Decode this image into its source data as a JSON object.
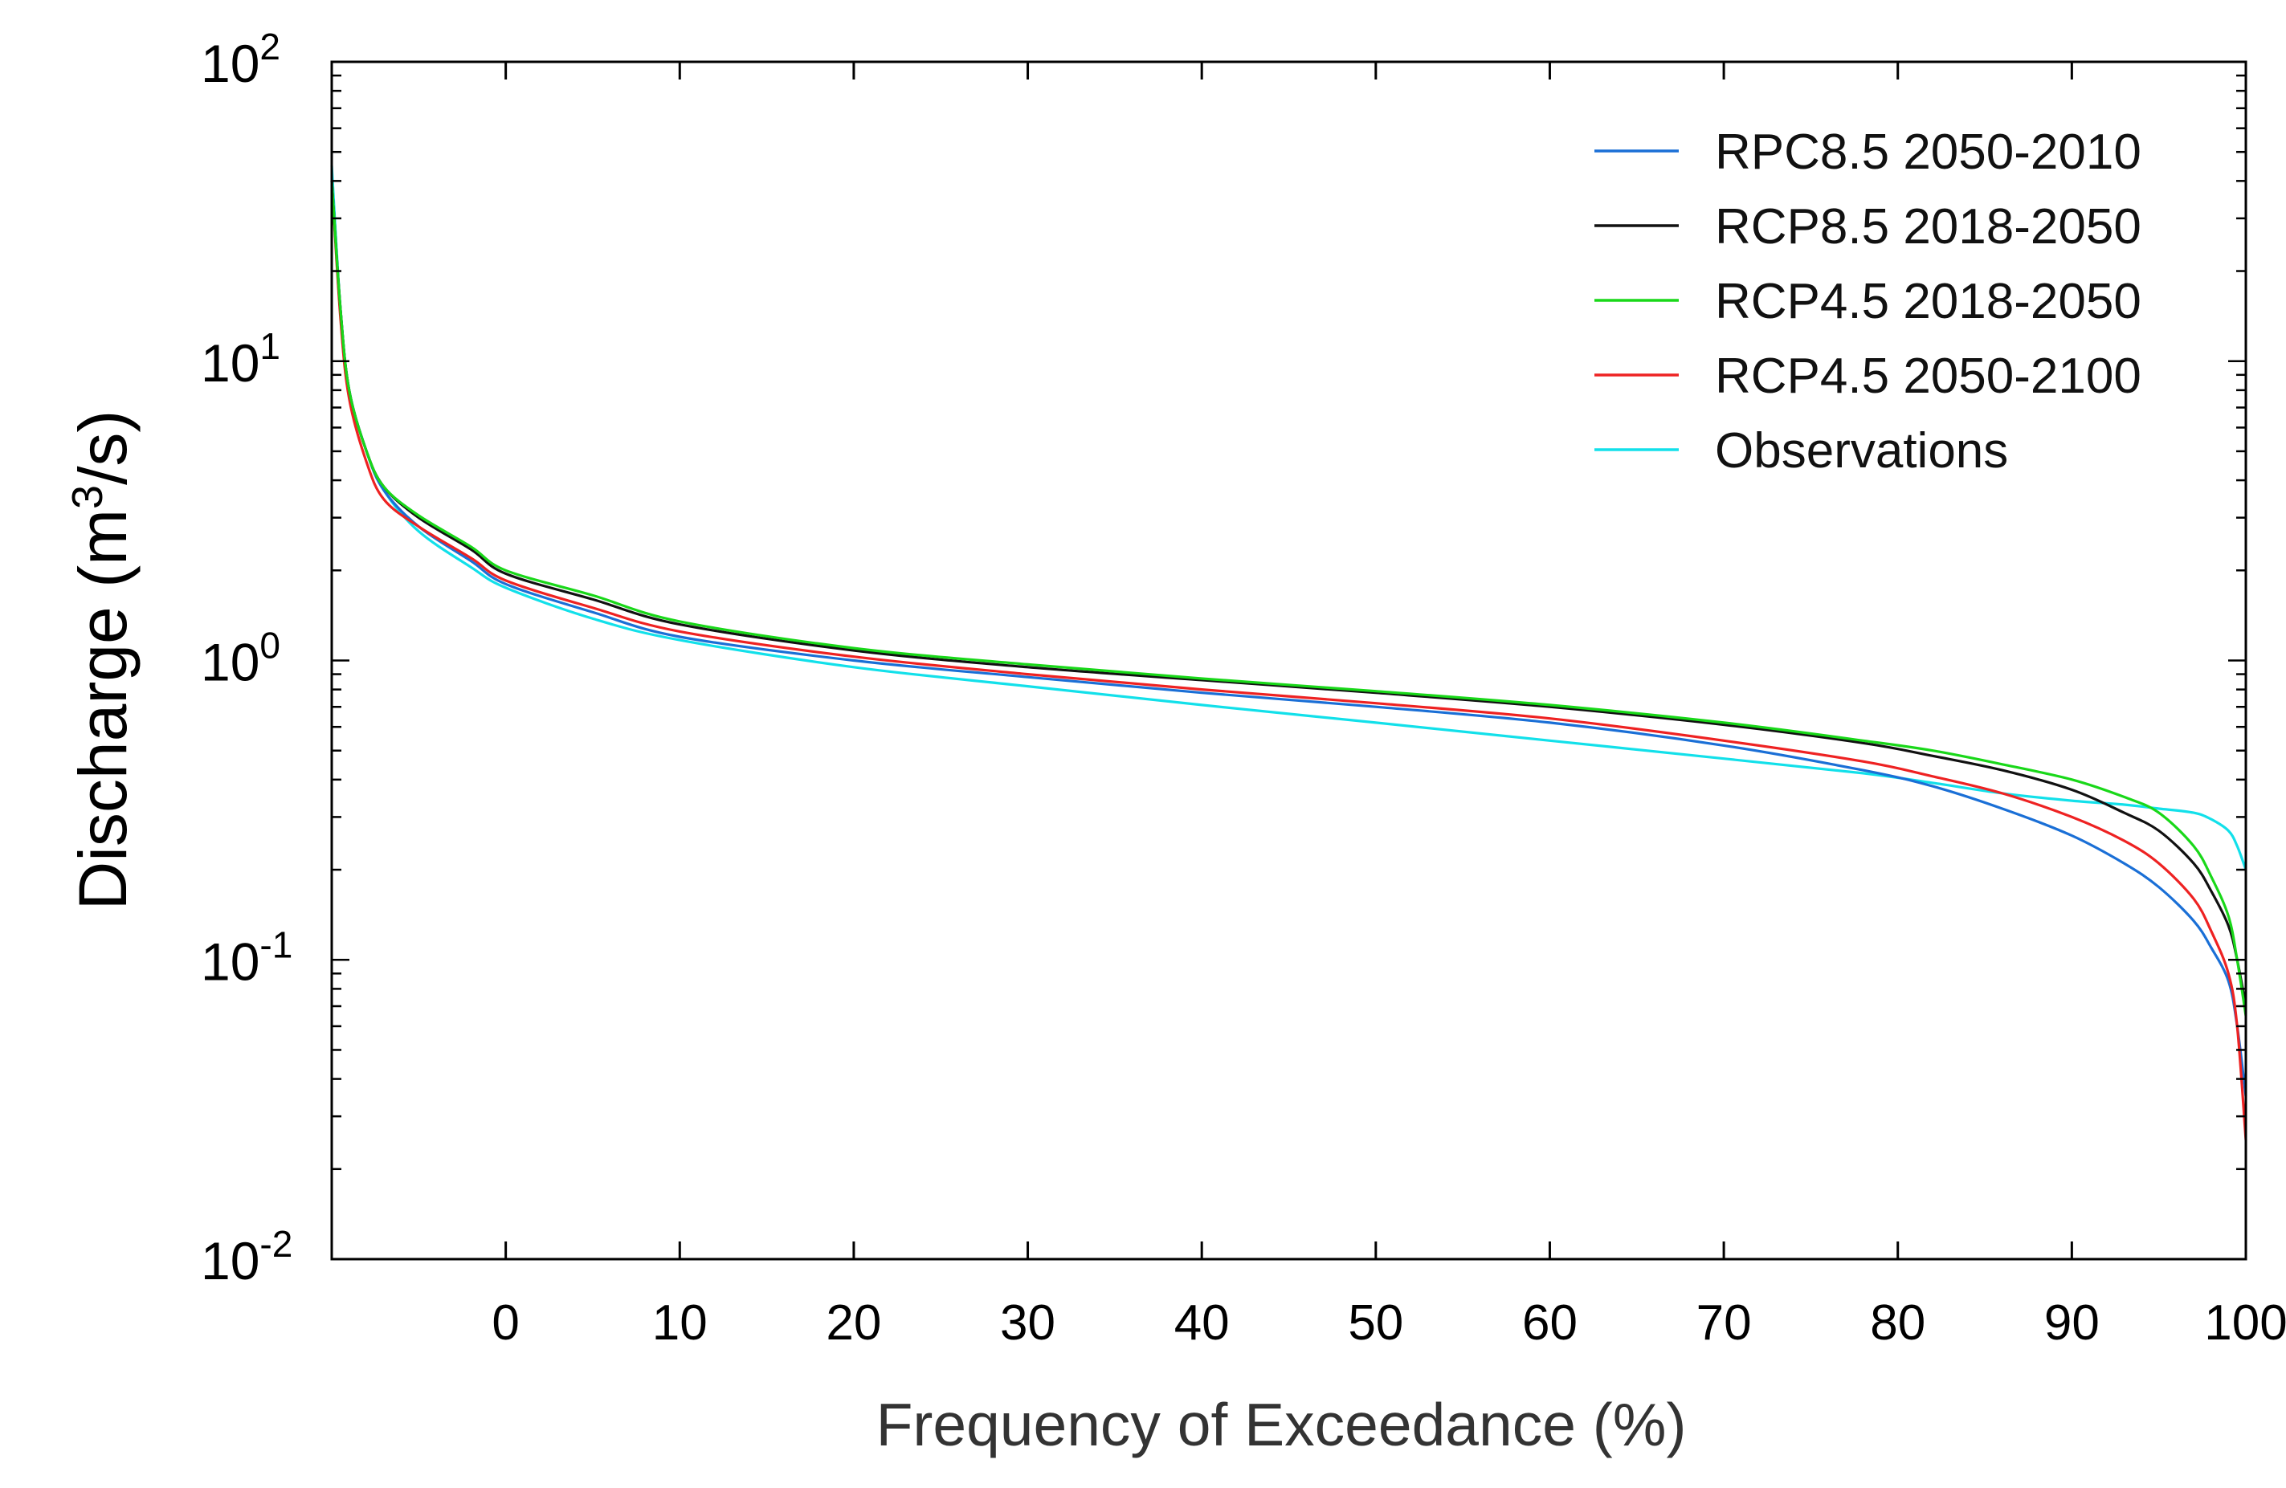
{
  "chart_data": {
    "type": "line",
    "title": "",
    "xlabel": "Frequency of Exceedance (%)",
    "ylabel": {
      "prefix": "Discharge (m",
      "sup": "3",
      "suffix": "/s)"
    },
    "xlim": [
      -10,
      100
    ],
    "xticks": [
      0,
      10,
      20,
      30,
      40,
      50,
      60,
      70,
      80,
      90,
      100
    ],
    "x_tick_labels": [
      "0",
      "10",
      "20",
      "30",
      "40",
      "50",
      "60",
      "70",
      "80",
      "90",
      "100"
    ],
    "ylim": [
      0.01,
      100
    ],
    "yscale": "log",
    "y_tick_labels": [
      {
        "base": "10",
        "exp": "2",
        "value": 100
      },
      {
        "base": "10",
        "exp": "1",
        "value": 10
      },
      {
        "base": "10",
        "exp": "0",
        "value": 1
      },
      {
        "base": "10",
        "exp": "-1",
        "value": 0.1
      },
      {
        "base": "10",
        "exp": "-2",
        "value": 0.01
      }
    ],
    "legend_position": "top-right",
    "series": [
      {
        "name": "RPC8.5 2050-2010",
        "color": "#1a6fd6",
        "x": [
          -10,
          -9.5,
          -9,
          -8,
          -7,
          -5,
          -2,
          0,
          5,
          10,
          20,
          30,
          40,
          50,
          60,
          70,
          78,
          82,
          86,
          90,
          93,
          95,
          97,
          98,
          99,
          99.5,
          100
        ],
        "y": [
          40,
          15,
          8,
          5,
          3.7,
          2.8,
          2.15,
          1.8,
          1.45,
          1.2,
          1.0,
          0.88,
          0.78,
          0.7,
          0.62,
          0.52,
          0.43,
          0.38,
          0.32,
          0.26,
          0.21,
          0.175,
          0.135,
          0.11,
          0.085,
          0.06,
          0.035
        ]
      },
      {
        "name": "RCP8.5 2018-2050",
        "color": "#111111",
        "x": [
          -10,
          -9.5,
          -9,
          -8,
          -7,
          -5,
          -2,
          0,
          5,
          10,
          20,
          30,
          40,
          50,
          60,
          70,
          78,
          82,
          86,
          90,
          93,
          95,
          97,
          98,
          99,
          99.5,
          100
        ],
        "y": [
          40,
          15,
          8,
          5,
          3.8,
          3.0,
          2.35,
          1.95,
          1.6,
          1.32,
          1.08,
          0.95,
          0.86,
          0.78,
          0.7,
          0.61,
          0.53,
          0.48,
          0.43,
          0.37,
          0.31,
          0.27,
          0.21,
          0.17,
          0.13,
          0.1,
          0.07
        ]
      },
      {
        "name": "RCP4.5 2018-2050",
        "color": "#19d819",
        "x": [
          -10,
          -9.5,
          -9,
          -8,
          -7,
          -5,
          -2,
          0,
          5,
          10,
          20,
          30,
          40,
          50,
          60,
          70,
          78,
          82,
          86,
          90,
          93,
          95,
          97,
          98,
          99,
          99.5,
          100
        ],
        "y": [
          40,
          15,
          8,
          5,
          3.8,
          3.05,
          2.4,
          2.0,
          1.65,
          1.35,
          1.1,
          0.97,
          0.87,
          0.79,
          0.71,
          0.62,
          0.54,
          0.5,
          0.45,
          0.4,
          0.35,
          0.31,
          0.24,
          0.19,
          0.14,
          0.1,
          0.065
        ]
      },
      {
        "name": "RCP4.5 2050-2100",
        "color": "#ee2222",
        "x": [
          -10,
          -9.5,
          -9,
          -8,
          -7,
          -5,
          -2,
          0,
          5,
          10,
          20,
          30,
          40,
          50,
          60,
          70,
          78,
          82,
          86,
          90,
          93,
          95,
          97,
          98,
          99,
          99.5,
          100
        ],
        "y": [
          40,
          14,
          7.5,
          4.6,
          3.45,
          2.8,
          2.2,
          1.85,
          1.5,
          1.25,
          1.03,
          0.9,
          0.8,
          0.72,
          0.64,
          0.54,
          0.46,
          0.41,
          0.36,
          0.3,
          0.25,
          0.21,
          0.16,
          0.125,
          0.09,
          0.06,
          0.025
        ]
      },
      {
        "name": "Observations",
        "color": "#12e0ea",
        "x": [
          -10,
          -9.5,
          -9,
          -8,
          -7,
          -5,
          -2,
          0,
          5,
          10,
          20,
          30,
          40,
          50,
          60,
          70,
          78,
          82,
          86,
          90,
          93,
          95,
          97,
          98,
          99,
          99.5,
          100
        ],
        "y": [
          45,
          15,
          8,
          5,
          3.7,
          2.7,
          2.05,
          1.75,
          1.38,
          1.17,
          0.95,
          0.82,
          0.71,
          0.62,
          0.54,
          0.47,
          0.42,
          0.39,
          0.36,
          0.34,
          0.33,
          0.32,
          0.31,
          0.295,
          0.27,
          0.24,
          0.2
        ]
      }
    ]
  }
}
